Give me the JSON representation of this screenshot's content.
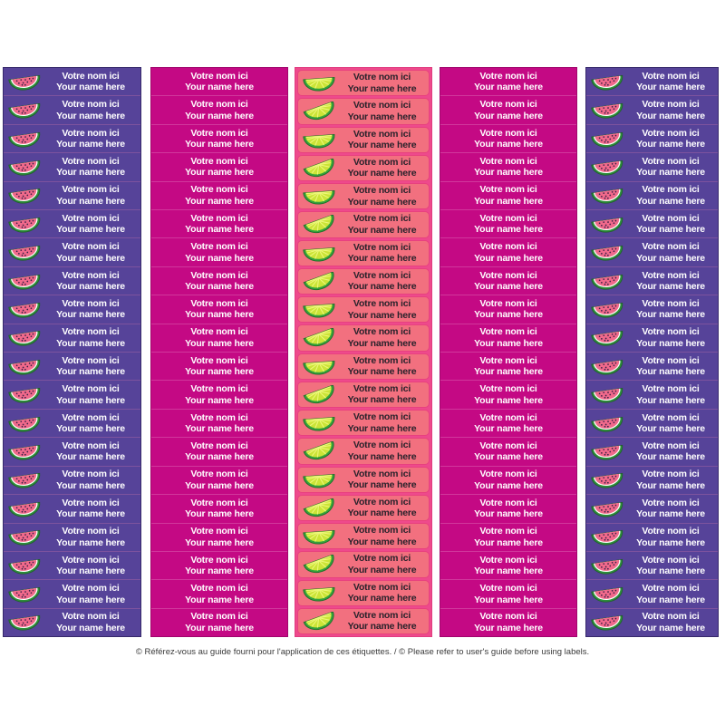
{
  "page": {
    "background_color": "#ffffff",
    "footer_note": "© Référez-vous au guide fourni pour l'application de ces étiquettes. / © Please refer to user's guide before using labels."
  },
  "label_text": {
    "line1": "Votre nom ici",
    "line2": "Your name here"
  },
  "sheet": {
    "rows_per_column": 20,
    "columns": [
      {
        "id": "label-column-1",
        "style": "purple-watermelon",
        "icon": "watermelon-icon",
        "background": "#564399",
        "label_background": "",
        "text_color": "#ffffff"
      },
      {
        "id": "label-column-2",
        "style": "magenta-plain",
        "icon": "",
        "background": "#c40984",
        "label_background": "",
        "text_color": "#ffffff"
      },
      {
        "id": "label-column-3",
        "style": "coral-lime",
        "icon": "lime-icon",
        "background": "#ee4a8c",
        "label_background": "#f2707f",
        "text_color": "#28222b"
      },
      {
        "id": "label-column-4",
        "style": "magenta-plain",
        "icon": "",
        "background": "#c40984",
        "label_background": "",
        "text_color": "#ffffff"
      },
      {
        "id": "label-column-5",
        "style": "purple-watermelon",
        "icon": "watermelon-icon",
        "background": "#564399",
        "label_background": "",
        "text_color": "#ffffff"
      }
    ]
  },
  "colors": {
    "purple_column": "#564399",
    "purple_border": "#37296b",
    "purple_separator": "#7d539e",
    "magenta_column": "#c40984",
    "coral_column_background": "#ee4a8c",
    "coral_label_fill": "#f2707f",
    "coral_label_border": "#e8417f",
    "watermelon_flesh": "#f0698b",
    "watermelon_rind": "#2e8f3b",
    "watermelon_seed": "#3a2147",
    "lime_rind": "#35a33c",
    "lime_flesh": "#cbe437",
    "lime_segment_lines": "#eef77c",
    "footer_text": "#3a3a3a"
  }
}
